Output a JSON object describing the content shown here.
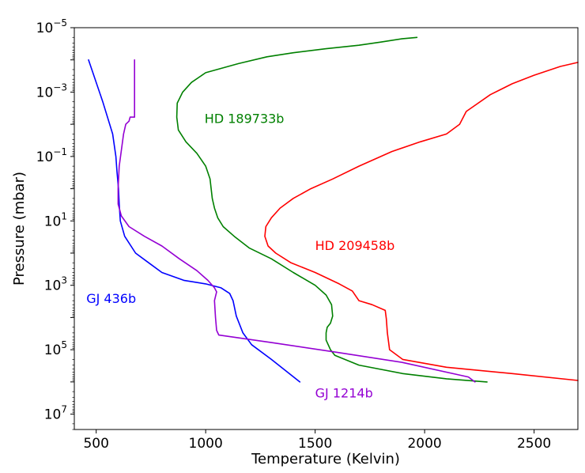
{
  "chart_data": {
    "type": "line",
    "title": "",
    "xlabel": "Temperature (Kelvin)",
    "ylabel": "Pressure (mbar)",
    "xlim": [
      400,
      2700
    ],
    "ylim": [
      1e-05,
      30000000.0
    ],
    "yscale": "log",
    "invert_y": true,
    "grid": false,
    "x_ticks": [
      {
        "value": 500,
        "label": "500"
      },
      {
        "value": 1000,
        "label": "1000"
      },
      {
        "value": 1500,
        "label": "1500"
      },
      {
        "value": 2000,
        "label": "2000"
      },
      {
        "value": 2500,
        "label": "2500"
      }
    ],
    "y_ticks": [
      {
        "value": 1e-05,
        "base": "10",
        "exp": "−5"
      },
      {
        "value": 0.001,
        "base": "10",
        "exp": "−3"
      },
      {
        "value": 0.1,
        "base": "10",
        "exp": "−1"
      },
      {
        "value": 10.0,
        "base": "10",
        "exp": "1"
      },
      {
        "value": 1000.0,
        "base": "10",
        "exp": "3"
      },
      {
        "value": 100000.0,
        "base": "10",
        "exp": "5"
      },
      {
        "value": 10000000.0,
        "base": "10",
        "exp": "7"
      }
    ],
    "series": [
      {
        "name": "GJ 436b",
        "color": "#0000ff",
        "label_at": [
          455,
          3500.0
        ],
        "points": [
          [
            465,
            0.0001
          ],
          [
            530,
            0.002
          ],
          [
            575,
            0.02
          ],
          [
            590,
            0.1
          ],
          [
            595,
            0.3
          ],
          [
            602,
            1
          ],
          [
            605,
            3
          ],
          [
            610,
            10
          ],
          [
            630,
            30
          ],
          [
            680,
            100
          ],
          [
            740,
            200
          ],
          [
            800,
            400
          ],
          [
            900,
            700
          ],
          [
            1000,
            900
          ],
          [
            1070,
            1200
          ],
          [
            1110,
            1800
          ],
          [
            1125,
            3000
          ],
          [
            1140,
            9000
          ],
          [
            1170,
            30000.0
          ],
          [
            1210,
            70000.0
          ],
          [
            1300,
            200000.0
          ],
          [
            1430,
            1000000.0
          ]
        ]
      },
      {
        "name": "HD 189733b",
        "color": "#008000",
        "label_at": [
          995,
          0.009
        ],
        "points": [
          [
            1965,
            2e-05
          ],
          [
            1900,
            2.2e-05
          ],
          [
            1800,
            2.8e-05
          ],
          [
            1700,
            3.5e-05
          ],
          [
            1550,
            4.5e-05
          ],
          [
            1400,
            6e-05
          ],
          [
            1280,
            8e-05
          ],
          [
            1150,
            0.00013
          ],
          [
            1000,
            0.00025
          ],
          [
            935,
            0.0005
          ],
          [
            895,
            0.001
          ],
          [
            870,
            0.0022
          ],
          [
            868,
            0.006
          ],
          [
            875,
            0.015
          ],
          [
            910,
            0.035
          ],
          [
            960,
            0.08
          ],
          [
            1000,
            0.2
          ],
          [
            1020,
            0.5
          ],
          [
            1025,
            1
          ],
          [
            1030,
            2
          ],
          [
            1040,
            4
          ],
          [
            1055,
            8
          ],
          [
            1080,
            15
          ],
          [
            1130,
            30
          ],
          [
            1200,
            70
          ],
          [
            1300,
            150
          ],
          [
            1400,
            400
          ],
          [
            1500,
            1000.0
          ],
          [
            1550,
            2000.0
          ],
          [
            1575,
            4000.0
          ],
          [
            1580,
            9000.0
          ],
          [
            1570,
            15000.0
          ],
          [
            1555,
            20000.0
          ],
          [
            1550,
            30000.0
          ],
          [
            1550,
            50000.0
          ],
          [
            1570,
            100000.0
          ],
          [
            1590,
            150000.0
          ],
          [
            1700,
            300000.0
          ],
          [
            1900,
            550000.0
          ],
          [
            2100,
            800000.0
          ],
          [
            2285,
            1000000.0
          ]
        ]
      },
      {
        "name": "HD 209458b",
        "color": "#ff0000",
        "label_at": [
          1500,
          80
        ],
        "points": [
          [
            2700,
            0.00012
          ],
          [
            2620,
            0.00016
          ],
          [
            2500,
            0.0003
          ],
          [
            2400,
            0.00055
          ],
          [
            2300,
            0.0012
          ],
          [
            2190,
            0.004
          ],
          [
            2160,
            0.01
          ],
          [
            2100,
            0.02
          ],
          [
            1980,
            0.035
          ],
          [
            1850,
            0.07
          ],
          [
            1700,
            0.2
          ],
          [
            1580,
            0.5
          ],
          [
            1480,
            1
          ],
          [
            1400,
            2
          ],
          [
            1340,
            4
          ],
          [
            1300,
            8
          ],
          [
            1275,
            15
          ],
          [
            1270,
            30
          ],
          [
            1285,
            60
          ],
          [
            1320,
            100
          ],
          [
            1390,
            200
          ],
          [
            1500,
            400
          ],
          [
            1610,
            900
          ],
          [
            1670,
            1500.0
          ],
          [
            1700,
            3000.0
          ],
          [
            1760,
            4000.0
          ],
          [
            1820,
            6000.0
          ],
          [
            1825,
            11000.0
          ],
          [
            1830,
            30000.0
          ],
          [
            1840,
            100000.0
          ],
          [
            1900,
            200000.0
          ],
          [
            2100,
            350000.0
          ],
          [
            2400,
            550000.0
          ],
          [
            2700,
            900000.0
          ]
        ]
      },
      {
        "name": "GJ 1214b",
        "color": "#9400d3",
        "label_at": [
          1500,
          3000000.0
        ],
        "points": [
          [
            675,
            0.0001
          ],
          [
            675,
            0.006
          ],
          [
            655,
            0.006
          ],
          [
            650,
            0.008
          ],
          [
            635,
            0.01
          ],
          [
            625,
            0.02
          ],
          [
            605,
            0.2
          ],
          [
            600,
            1
          ],
          [
            600,
            3
          ],
          [
            615,
            7
          ],
          [
            650,
            15
          ],
          [
            720,
            30
          ],
          [
            800,
            60
          ],
          [
            880,
            150
          ],
          [
            960,
            350
          ],
          [
            1010,
            700
          ],
          [
            1040,
            1200.0
          ],
          [
            1050,
            1600.0
          ],
          [
            1045,
            2200.0
          ],
          [
            1040,
            3000.0
          ],
          [
            1045,
            10000.0
          ],
          [
            1050,
            25000.0
          ],
          [
            1060,
            35000.0
          ],
          [
            1300,
            60000.0
          ],
          [
            1600,
            120000.0
          ],
          [
            1900,
            250000.0
          ],
          [
            2200,
            700000.0
          ],
          [
            2230,
            1000000.0
          ]
        ]
      }
    ]
  }
}
